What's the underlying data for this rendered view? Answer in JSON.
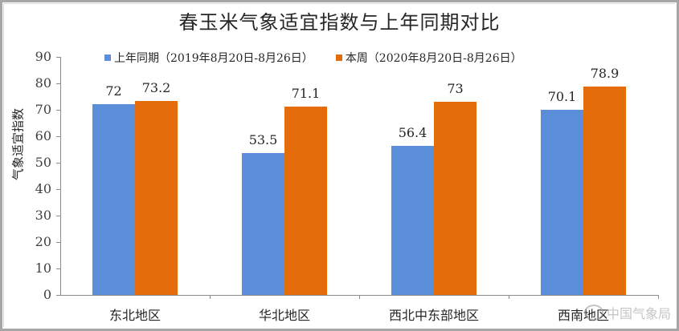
{
  "chart_data": {
    "type": "bar",
    "title": "春玉米气象适宜指数与上年同期对比",
    "xlabel": "",
    "ylabel": "气象适宜指数",
    "ylim": [
      0,
      90
    ],
    "yticks": [
      0,
      10,
      20,
      30,
      40,
      50,
      60,
      70,
      80,
      90
    ],
    "grid": false,
    "legend_position": "top",
    "categories": [
      "东北地区",
      "华北地区",
      "西北中东部地区",
      "西南地区"
    ],
    "series": [
      {
        "name": "上年同期（2019年8月20日-8月26日）",
        "color": "#5A8ED8",
        "values": [
          72,
          53.5,
          56.4,
          70.1
        ]
      },
      {
        "name": "本周（2020年8月20日-8月26日）",
        "color": "#E46C0A",
        "values": [
          73.2,
          71.1,
          73,
          78.9
        ]
      }
    ],
    "data_labels": [
      [
        "72",
        "53.5",
        "56.4",
        "70.1"
      ],
      [
        "73.2",
        "71.1",
        "73",
        "78.9"
      ]
    ]
  },
  "watermark": "中国气象局"
}
